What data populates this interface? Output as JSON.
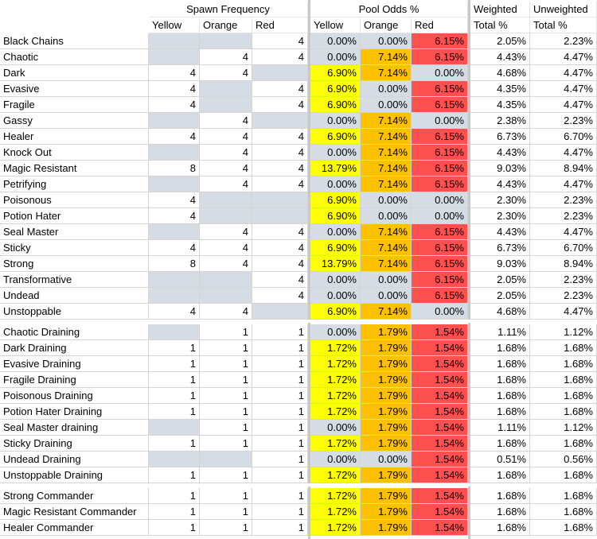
{
  "headers": {
    "group1": "Spawn Frequency",
    "group2": "Pool Odds %",
    "weighted": "Weighted",
    "unweighted": "Unweighted",
    "sub": [
      "Yellow",
      "Orange",
      "Red",
      "Yellow",
      "Orange",
      "Red",
      "Total %",
      "Total %"
    ]
  },
  "rows": [
    {
      "name": "Black Chains",
      "sy": "",
      "so": "",
      "sr": "4",
      "py": "0.00%",
      "po": "0.00%",
      "pr": "6.15%",
      "w": "2.05%",
      "u": "2.23%"
    },
    {
      "name": "Chaotic",
      "sy": "",
      "so": "4",
      "sr": "4",
      "py": "0.00%",
      "po": "7.14%",
      "pr": "6.15%",
      "w": "4.43%",
      "u": "4.47%"
    },
    {
      "name": "Dark",
      "sy": "4",
      "so": "4",
      "sr": "",
      "py": "6.90%",
      "po": "7.14%",
      "pr": "0.00%",
      "w": "4.68%",
      "u": "4.47%"
    },
    {
      "name": "Evasive",
      "sy": "4",
      "so": "",
      "sr": "4",
      "py": "6.90%",
      "po": "0.00%",
      "pr": "6.15%",
      "w": "4.35%",
      "u": "4.47%"
    },
    {
      "name": "Fragile",
      "sy": "4",
      "so": "",
      "sr": "4",
      "py": "6.90%",
      "po": "0.00%",
      "pr": "6.15%",
      "w": "4.35%",
      "u": "4.47%"
    },
    {
      "name": "Gassy",
      "sy": "",
      "so": "4",
      "sr": "",
      "py": "0.00%",
      "po": "7.14%",
      "pr": "0.00%",
      "w": "2.38%",
      "u": "2.23%"
    },
    {
      "name": "Healer",
      "sy": "4",
      "so": "4",
      "sr": "4",
      "py": "6.90%",
      "po": "7.14%",
      "pr": "6.15%",
      "w": "6.73%",
      "u": "6.70%"
    },
    {
      "name": "Knock Out",
      "sy": "",
      "so": "4",
      "sr": "4",
      "py": "0.00%",
      "po": "7.14%",
      "pr": "6.15%",
      "w": "4.43%",
      "u": "4.47%"
    },
    {
      "name": "Magic Resistant",
      "sy": "8",
      "so": "4",
      "sr": "4",
      "py": "13.79%",
      "po": "7.14%",
      "pr": "6.15%",
      "w": "9.03%",
      "u": "8.94%"
    },
    {
      "name": "Petrifying",
      "sy": "",
      "so": "4",
      "sr": "4",
      "py": "0.00%",
      "po": "7.14%",
      "pr": "6.15%",
      "w": "4.43%",
      "u": "4.47%"
    },
    {
      "name": "Poisonous",
      "sy": "4",
      "so": "",
      "sr": "",
      "py": "6.90%",
      "po": "0.00%",
      "pr": "0.00%",
      "w": "2.30%",
      "u": "2.23%"
    },
    {
      "name": "Potion Hater",
      "sy": "4",
      "so": "",
      "sr": "",
      "py": "6.90%",
      "po": "0.00%",
      "pr": "0.00%",
      "w": "2.30%",
      "u": "2.23%"
    },
    {
      "name": "Seal Master",
      "sy": "",
      "so": "4",
      "sr": "4",
      "py": "0.00%",
      "po": "7.14%",
      "pr": "6.15%",
      "w": "4.43%",
      "u": "4.47%"
    },
    {
      "name": "Sticky",
      "sy": "4",
      "so": "4",
      "sr": "4",
      "py": "6.90%",
      "po": "7.14%",
      "pr": "6.15%",
      "w": "6.73%",
      "u": "6.70%"
    },
    {
      "name": "Strong",
      "sy": "8",
      "so": "4",
      "sr": "4",
      "py": "13.79%",
      "po": "7.14%",
      "pr": "6.15%",
      "w": "9.03%",
      "u": "8.94%"
    },
    {
      "name": "Transformative",
      "sy": "",
      "so": "",
      "sr": "4",
      "py": "0.00%",
      "po": "0.00%",
      "pr": "6.15%",
      "w": "2.05%",
      "u": "2.23%"
    },
    {
      "name": "Undead",
      "sy": "",
      "so": "",
      "sr": "4",
      "py": "0.00%",
      "po": "0.00%",
      "pr": "6.15%",
      "w": "2.05%",
      "u": "2.23%"
    },
    {
      "name": "Unstoppable",
      "sy": "4",
      "so": "4",
      "sr": "",
      "py": "6.90%",
      "po": "7.14%",
      "pr": "0.00%",
      "w": "4.68%",
      "u": "4.47%"
    },
    {
      "name": "Chaotic Draining",
      "sy": "",
      "so": "1",
      "sr": "1",
      "py": "0.00%",
      "po": "1.79%",
      "pr": "1.54%",
      "w": "1.11%",
      "u": "1.12%"
    },
    {
      "name": "Dark Draining",
      "sy": "1",
      "so": "1",
      "sr": "1",
      "py": "1.72%",
      "po": "1.79%",
      "pr": "1.54%",
      "w": "1.68%",
      "u": "1.68%"
    },
    {
      "name": "Evasive Draining",
      "sy": "1",
      "so": "1",
      "sr": "1",
      "py": "1.72%",
      "po": "1.79%",
      "pr": "1.54%",
      "w": "1.68%",
      "u": "1.68%"
    },
    {
      "name": "Fragile Draining",
      "sy": "1",
      "so": "1",
      "sr": "1",
      "py": "1.72%",
      "po": "1.79%",
      "pr": "1.54%",
      "w": "1.68%",
      "u": "1.68%"
    },
    {
      "name": "Poisonous Draining",
      "sy": "1",
      "so": "1",
      "sr": "1",
      "py": "1.72%",
      "po": "1.79%",
      "pr": "1.54%",
      "w": "1.68%",
      "u": "1.68%"
    },
    {
      "name": "Potion Hater Draining",
      "sy": "1",
      "so": "1",
      "sr": "1",
      "py": "1.72%",
      "po": "1.79%",
      "pr": "1.54%",
      "w": "1.68%",
      "u": "1.68%"
    },
    {
      "name": "Seal Master draining",
      "sy": "",
      "so": "1",
      "sr": "1",
      "py": "0.00%",
      "po": "1.79%",
      "pr": "1.54%",
      "w": "1.11%",
      "u": "1.12%"
    },
    {
      "name": "Sticky Draining",
      "sy": "1",
      "so": "1",
      "sr": "1",
      "py": "1.72%",
      "po": "1.79%",
      "pr": "1.54%",
      "w": "1.68%",
      "u": "1.68%"
    },
    {
      "name": "Undead Draining",
      "sy": "",
      "so": "",
      "sr": "1",
      "py": "0.00%",
      "po": "0.00%",
      "pr": "1.54%",
      "w": "0.51%",
      "u": "0.56%"
    },
    {
      "name": "Unstoppable Draining",
      "sy": "1",
      "so": "1",
      "sr": "1",
      "py": "1.72%",
      "po": "1.79%",
      "pr": "1.54%",
      "w": "1.68%",
      "u": "1.68%"
    },
    {
      "name": "Strong Commander",
      "sy": "1",
      "so": "1",
      "sr": "1",
      "py": "1.72%",
      "po": "1.79%",
      "pr": "1.54%",
      "w": "1.68%",
      "u": "1.68%"
    },
    {
      "name": "Magic Resistant Commander",
      "sy": "1",
      "so": "1",
      "sr": "1",
      "py": "1.72%",
      "po": "1.79%",
      "pr": "1.54%",
      "w": "1.68%",
      "u": "1.68%"
    },
    {
      "name": "Healer Commander",
      "sy": "1",
      "so": "1",
      "sr": "1",
      "py": "1.72%",
      "po": "1.79%",
      "pr": "1.54%",
      "w": "1.68%",
      "u": "1.68%"
    }
  ],
  "colors": {
    "empty_spawn": "#d6dce4",
    "yellow": "#ffff00",
    "orange": "#ffc000",
    "red": "#ff5050",
    "gray": "#d6dce4"
  }
}
